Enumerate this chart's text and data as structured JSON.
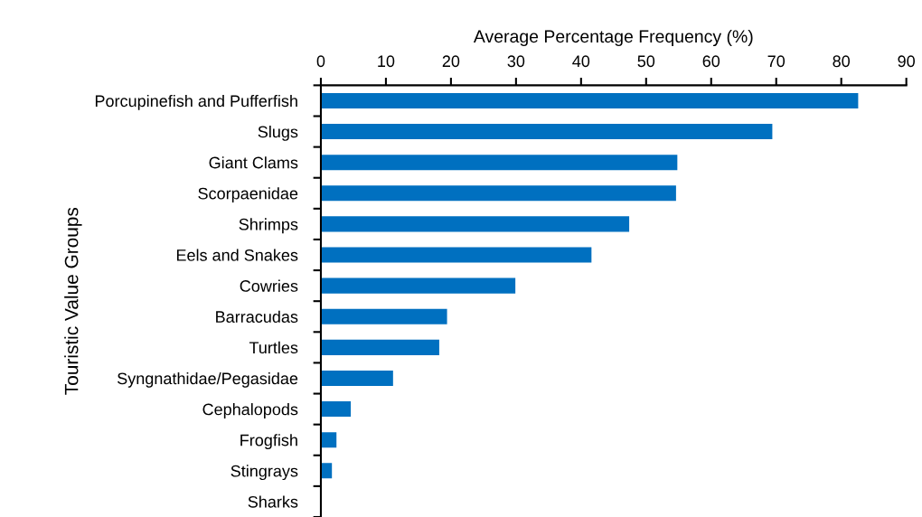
{
  "chart_data": {
    "type": "bar",
    "orientation": "horizontal",
    "xlabel": "Average Percentage Frequency (%)",
    "ylabel": "Touristic Value Groups",
    "categories": [
      "Porcupinefish and Pufferfish",
      "Slugs",
      "Giant Clams",
      "Scorpaenidae",
      "Shrimps",
      "Eels and Snakes",
      "Cowries",
      "Barracudas",
      "Turtles",
      "Syngnathidae/Pegasidae",
      "Cephalopods",
      "Frogfish",
      "Stingrays",
      "Sharks"
    ],
    "values": [
      82.6,
      69.4,
      54.8,
      54.6,
      47.4,
      41.6,
      29.9,
      19.4,
      18.2,
      11.1,
      4.6,
      2.4,
      1.7,
      0
    ],
    "color": "#0070c0",
    "xlim": [
      0,
      90
    ],
    "xticks": [
      0,
      10,
      20,
      30,
      40,
      50,
      60,
      70,
      80,
      90
    ],
    "grid": false,
    "legend": false
  }
}
